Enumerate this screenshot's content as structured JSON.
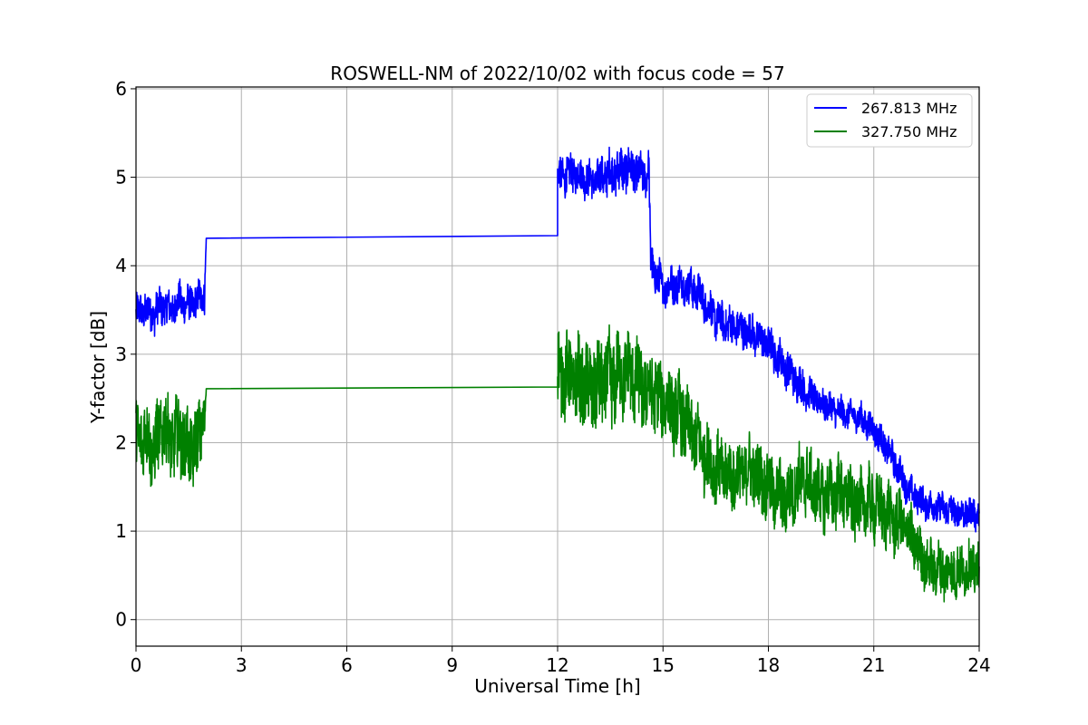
{
  "chart_data": {
    "type": "line",
    "title": "ROSWELL-NM of 2022/10/02 with focus code = 57",
    "xlabel": "Universal Time [h]",
    "ylabel": "Y-factor [dB]",
    "xlim": [
      0,
      24
    ],
    "ylim": [
      -0.3,
      6.02
    ],
    "xticks": [
      0,
      3,
      6,
      9,
      12,
      15,
      18,
      21,
      24
    ],
    "xtick_labels": [
      "0",
      "3",
      "6",
      "9",
      "12",
      "15",
      "18",
      "21",
      "24"
    ],
    "yticks": [
      0,
      1,
      2,
      3,
      4,
      5,
      6
    ],
    "ytick_labels": [
      "0",
      "1",
      "2",
      "3",
      "4",
      "5",
      "6"
    ],
    "grid": true,
    "legend_position": "top-right",
    "series": [
      {
        "name": "267.813 MHz",
        "color": "#0000ff",
        "x": [
          0,
          0.25,
          0.5,
          0.75,
          1.0,
          1.25,
          1.5,
          1.75,
          1.95,
          2.0,
          12.0,
          12.0,
          12.5,
          13.0,
          13.5,
          14.0,
          14.5,
          14.6,
          14.65,
          15.0,
          15.5,
          16.0,
          16.5,
          17.0,
          17.5,
          18.0,
          18.5,
          19.0,
          19.5,
          20.0,
          20.5,
          21.0,
          21.5,
          22.0,
          22.5,
          23.0,
          23.5,
          24.0
        ],
        "y": [
          3.45,
          3.5,
          3.45,
          3.55,
          3.5,
          3.6,
          3.55,
          3.6,
          3.7,
          4.31,
          4.34,
          5.0,
          5.05,
          4.95,
          5.05,
          5.1,
          5.0,
          5.1,
          4.0,
          3.75,
          3.8,
          3.7,
          3.4,
          3.3,
          3.25,
          3.1,
          2.85,
          2.6,
          2.45,
          2.35,
          2.3,
          2.15,
          1.85,
          1.45,
          1.3,
          1.25,
          1.2,
          1.2
        ],
        "noise": [
          0.25,
          0.25,
          0.25,
          0.25,
          0.25,
          0.25,
          0.25,
          0.25,
          0.25,
          0,
          0,
          0.25,
          0.25,
          0.25,
          0.3,
          0.3,
          0.25,
          0.25,
          0.3,
          0.25,
          0.25,
          0.25,
          0.25,
          0.25,
          0.25,
          0.25,
          0.25,
          0.25,
          0.2,
          0.2,
          0.2,
          0.2,
          0.2,
          0.2,
          0.2,
          0.2,
          0.2,
          0.2
        ]
      },
      {
        "name": "327.750 MHz",
        "color": "#008000",
        "x": [
          0,
          0.25,
          0.5,
          0.75,
          1.0,
          1.25,
          1.5,
          1.75,
          1.95,
          2.0,
          12.0,
          12.0,
          12.5,
          13.0,
          13.5,
          14.0,
          14.5,
          15.0,
          15.5,
          16.0,
          16.5,
          17.0,
          17.5,
          18.0,
          18.5,
          19.0,
          19.5,
          20.0,
          20.5,
          21.0,
          21.5,
          22.0,
          22.5,
          23.0,
          23.5,
          24.0
        ],
        "y": [
          2.0,
          2.1,
          1.9,
          2.2,
          2.0,
          2.1,
          1.9,
          2.0,
          2.3,
          2.61,
          2.63,
          2.8,
          2.7,
          2.6,
          2.7,
          2.8,
          2.6,
          2.5,
          2.3,
          2.0,
          1.7,
          1.6,
          1.7,
          1.5,
          1.35,
          1.6,
          1.4,
          1.45,
          1.3,
          1.3,
          1.15,
          1.0,
          0.6,
          0.55,
          0.55,
          0.6
        ],
        "noise": [
          0.5,
          0.5,
          0.5,
          0.5,
          0.5,
          0.5,
          0.5,
          0.5,
          0.4,
          0,
          0,
          0.55,
          0.55,
          0.6,
          0.6,
          0.55,
          0.55,
          0.5,
          0.5,
          0.5,
          0.45,
          0.45,
          0.45,
          0.45,
          0.45,
          0.45,
          0.45,
          0.45,
          0.45,
          0.45,
          0.45,
          0.4,
          0.35,
          0.35,
          0.35,
          0.35
        ]
      }
    ]
  }
}
